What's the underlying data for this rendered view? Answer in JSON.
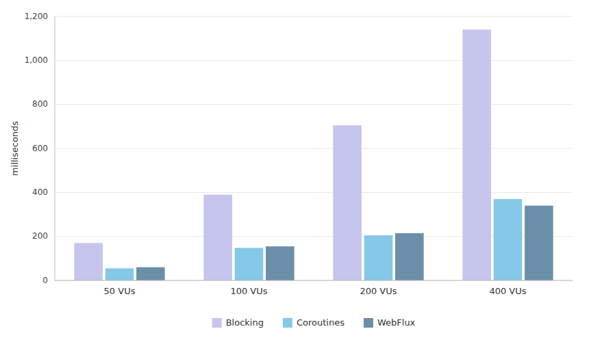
{
  "chart_data": {
    "type": "bar",
    "categories": [
      "50 VUs",
      "100 VUs",
      "200 VUs",
      "400 VUs"
    ],
    "series": [
      {
        "name": "Blocking",
        "color": "#c5c5ee",
        "values": [
          170,
          390,
          705,
          1140
        ]
      },
      {
        "name": "Coroutines",
        "color": "#85c8e8",
        "values": [
          55,
          148,
          205,
          370
        ]
      },
      {
        "name": "WebFlux",
        "color": "#6b8fa8",
        "values": [
          60,
          155,
          215,
          340
        ]
      }
    ],
    "ylabel": "milliseconds",
    "ylim": [
      0,
      1200
    ],
    "yticks": [
      0,
      200,
      400,
      600,
      800,
      {
        "value": 1000,
        "label": "1,000"
      },
      {
        "value": 1200,
        "label": "1,200"
      }
    ],
    "grid": true,
    "legend": "bottom"
  }
}
